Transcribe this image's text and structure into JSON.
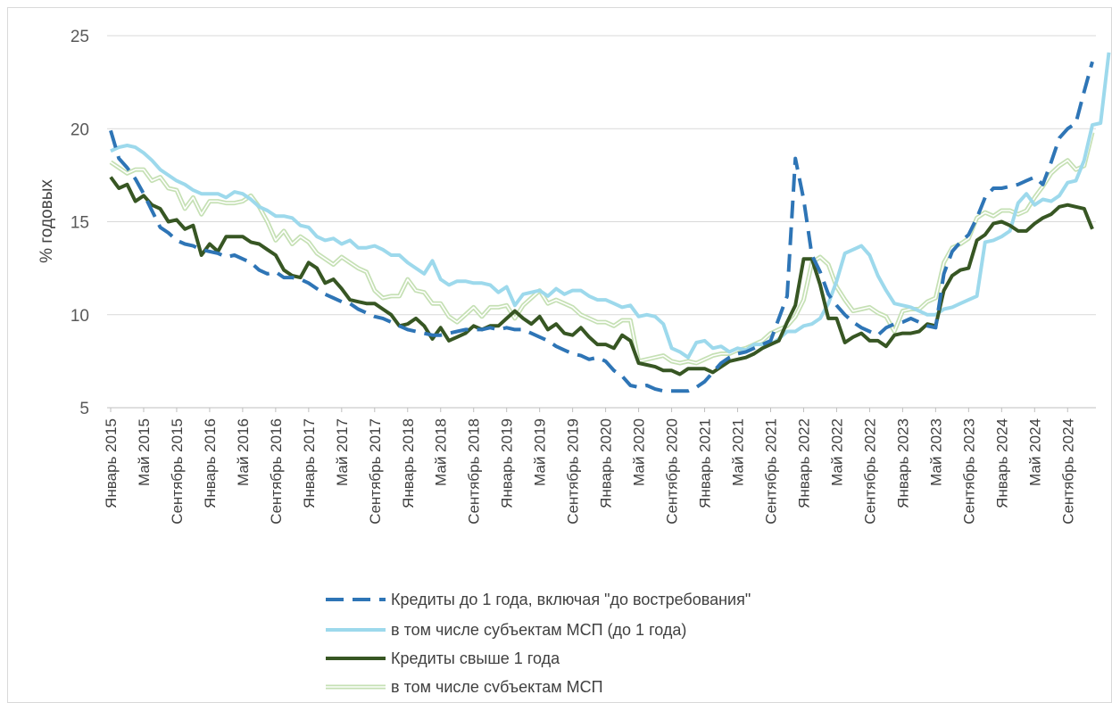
{
  "chart_data": {
    "type": "line",
    "title": "",
    "ylabel": "% годовых",
    "xlabel": "",
    "ylim": [
      5,
      25
    ],
    "yticks": [
      5,
      10,
      15,
      20,
      25
    ],
    "grid": "horizontal",
    "legend_position": "bottom",
    "x_start": "2015-01",
    "months": 120,
    "x_tick_labels": [
      "Январь 2015",
      "Май 2015",
      "Сентябрь 2015",
      "Январь 2016",
      "Май 2016",
      "Сентябрь 2016",
      "Январь 2017",
      "Май 2017",
      "Сентябрь 2017",
      "Январь 2018",
      "Май 2018",
      "Сентябрь 2018",
      "Январь 2019",
      "Май 2019",
      "Сентябрь 2019",
      "Январь 2020",
      "Май 2020",
      "Сентябрь 2020",
      "Январь 2021",
      "Май 2021",
      "Сентябрь 2021",
      "Январь 2022",
      "Май 2022",
      "Сентябрь 2022",
      "Январь 2023",
      "Май 2023",
      "Сентябрь 2023",
      "Январь 2024",
      "Май 2024",
      "Сентябрь 2024"
    ],
    "series": [
      {
        "name": "Кредиты до 1 года, включая \"до востребования\"",
        "color": "#2e75b6",
        "style": "dashed",
        "values": [
          19.9,
          18.4,
          17.9,
          17.3,
          16.5,
          15.6,
          14.7,
          14.4,
          14.0,
          13.8,
          13.7,
          13.5,
          13.4,
          13.3,
          13.1,
          13.2,
          13.0,
          12.8,
          12.4,
          12.2,
          12.3,
          12.0,
          12.0,
          11.9,
          11.7,
          11.4,
          11.1,
          10.9,
          10.7,
          10.6,
          10.3,
          10.1,
          9.9,
          9.8,
          9.6,
          9.4,
          9.2,
          9.1,
          9.0,
          8.9,
          8.9,
          9.0,
          9.1,
          9.2,
          9.2,
          9.2,
          9.3,
          9.2,
          9.3,
          9.2,
          9.2,
          9.0,
          8.8,
          8.6,
          8.3,
          8.1,
          7.9,
          7.8,
          7.6,
          7.7,
          7.5,
          7.0,
          6.7,
          6.2,
          6.1,
          6.2,
          6.0,
          5.9,
          5.9,
          5.9,
          5.9,
          6.1,
          6.4,
          6.9,
          7.4,
          7.7,
          7.9,
          8.0,
          8.2,
          8.4,
          8.6,
          9.8,
          11.0,
          18.4,
          16.2,
          13.2,
          12.3,
          11.1,
          10.5,
          10.0,
          9.6,
          9.3,
          9.1,
          8.9,
          9.3,
          9.5,
          9.6,
          9.8,
          9.6,
          9.4,
          9.3,
          12.2,
          13.4,
          13.9,
          14.3,
          15.2,
          16.3,
          16.8,
          16.8,
          16.9,
          17.0,
          17.2,
          17.4,
          17.0,
          18.2,
          19.5,
          20.0,
          20.3,
          22.0,
          23.6
        ]
      },
      {
        "name": "в том числе субъектам МСП (до 1 года)",
        "color": "#9dd9ec",
        "style": "solid",
        "values": [
          18.8,
          19.0,
          19.1,
          19.0,
          18.7,
          18.3,
          17.8,
          17.5,
          17.2,
          17.0,
          16.7,
          16.5,
          16.5,
          16.5,
          16.3,
          16.6,
          16.5,
          16.2,
          15.8,
          15.6,
          15.3,
          15.3,
          15.2,
          14.8,
          14.7,
          14.2,
          14.0,
          14.1,
          13.8,
          14.0,
          13.6,
          13.6,
          13.7,
          13.5,
          13.2,
          13.2,
          12.8,
          12.5,
          12.2,
          12.9,
          11.9,
          11.6,
          11.8,
          11.8,
          11.7,
          11.7,
          11.6,
          11.2,
          11.5,
          10.5,
          11.1,
          11.2,
          11.3,
          11.0,
          11.4,
          11.1,
          11.3,
          11.3,
          11.0,
          10.8,
          10.8,
          10.6,
          10.4,
          10.5,
          9.9,
          10.0,
          9.9,
          9.5,
          8.2,
          8.0,
          7.7,
          8.5,
          8.6,
          8.2,
          8.3,
          8.0,
          8.2,
          8.1,
          8.4,
          8.4,
          8.4,
          8.7,
          9.1,
          9.1,
          9.4,
          9.5,
          9.8,
          10.6,
          11.8,
          13.3,
          13.5,
          13.7,
          13.2,
          12.1,
          11.3,
          10.6,
          10.5,
          10.4,
          10.2,
          10.0,
          10.0,
          10.3,
          10.4,
          10.6,
          10.8,
          11.0,
          13.9,
          14.0,
          14.2,
          14.5,
          16.0,
          16.5,
          15.9,
          16.2,
          16.1,
          16.4,
          17.1,
          17.2,
          18.3,
          20.2,
          20.3,
          24.1
        ]
      },
      {
        "name": "Кредиты свыше 1 года",
        "color": "#375623",
        "style": "solid",
        "values": [
          17.4,
          16.8,
          17.0,
          16.1,
          16.4,
          15.9,
          15.7,
          15.0,
          15.1,
          14.6,
          14.8,
          13.2,
          13.8,
          13.4,
          14.2,
          14.2,
          14.2,
          13.9,
          13.8,
          13.5,
          13.2,
          12.4,
          12.1,
          12.0,
          12.8,
          12.5,
          11.7,
          11.9,
          11.4,
          10.8,
          10.7,
          10.6,
          10.6,
          10.3,
          10.0,
          9.4,
          9.5,
          9.8,
          9.4,
          8.7,
          9.3,
          8.6,
          8.8,
          9.0,
          9.4,
          9.2,
          9.4,
          9.4,
          9.8,
          10.2,
          9.8,
          9.5,
          9.9,
          9.2,
          9.5,
          9.0,
          8.9,
          9.3,
          8.8,
          8.4,
          8.4,
          8.2,
          8.9,
          8.6,
          7.4,
          7.3,
          7.2,
          7.0,
          7.0,
          6.8,
          7.1,
          7.1,
          7.1,
          6.9,
          7.2,
          7.5,
          7.6,
          7.7,
          7.9,
          8.2,
          8.4,
          8.6,
          9.6,
          10.5,
          13.0,
          13.0,
          11.6,
          9.8,
          9.8,
          8.5,
          8.8,
          9.0,
          8.6,
          8.6,
          8.3,
          8.9,
          9.0,
          9.0,
          9.1,
          9.5,
          9.4,
          11.3,
          12.1,
          12.4,
          12.5,
          14.0,
          14.3,
          14.9,
          15.0,
          14.8,
          14.5,
          14.5,
          14.9,
          15.2,
          15.4,
          15.8,
          15.9,
          15.8,
          15.7,
          14.6
        ]
      },
      {
        "name": "в том числе субъектам МСП",
        "color": "#c5e0b4",
        "style": "double",
        "values": [
          18.2,
          17.9,
          17.6,
          17.8,
          17.8,
          17.2,
          17.4,
          16.8,
          16.7,
          15.7,
          16.3,
          15.4,
          16.1,
          16.1,
          16.0,
          16.0,
          16.1,
          16.4,
          15.8,
          15.0,
          14.0,
          14.5,
          13.8,
          14.2,
          13.9,
          13.3,
          13.0,
          12.7,
          13.1,
          12.8,
          12.5,
          12.3,
          11.3,
          10.9,
          11.0,
          11.0,
          11.9,
          11.3,
          11.2,
          10.6,
          10.6,
          9.9,
          9.6,
          10.0,
          10.4,
          9.9,
          10.4,
          10.4,
          10.5,
          9.8,
          10.5,
          10.9,
          11.3,
          10.6,
          10.8,
          10.6,
          10.4,
          10.0,
          9.8,
          9.6,
          9.6,
          9.4,
          9.7,
          9.7,
          7.5,
          7.6,
          7.7,
          7.8,
          7.5,
          7.4,
          7.5,
          7.4,
          7.6,
          7.8,
          7.9,
          7.9,
          8.1,
          8.2,
          8.4,
          8.6,
          9.0,
          9.2,
          9.4,
          9.9,
          10.8,
          12.8,
          13.1,
          12.7,
          11.5,
          10.8,
          10.2,
          10.3,
          10.4,
          10.1,
          9.9,
          9.1,
          10.2,
          10.3,
          10.3,
          10.7,
          10.9,
          12.8,
          13.6,
          13.8,
          14.1,
          15.2,
          15.5,
          15.3,
          15.6,
          15.6,
          15.4,
          15.6,
          16.3,
          16.9,
          17.6,
          18.0,
          18.3,
          17.8,
          18.0,
          19.8
        ]
      }
    ]
  }
}
